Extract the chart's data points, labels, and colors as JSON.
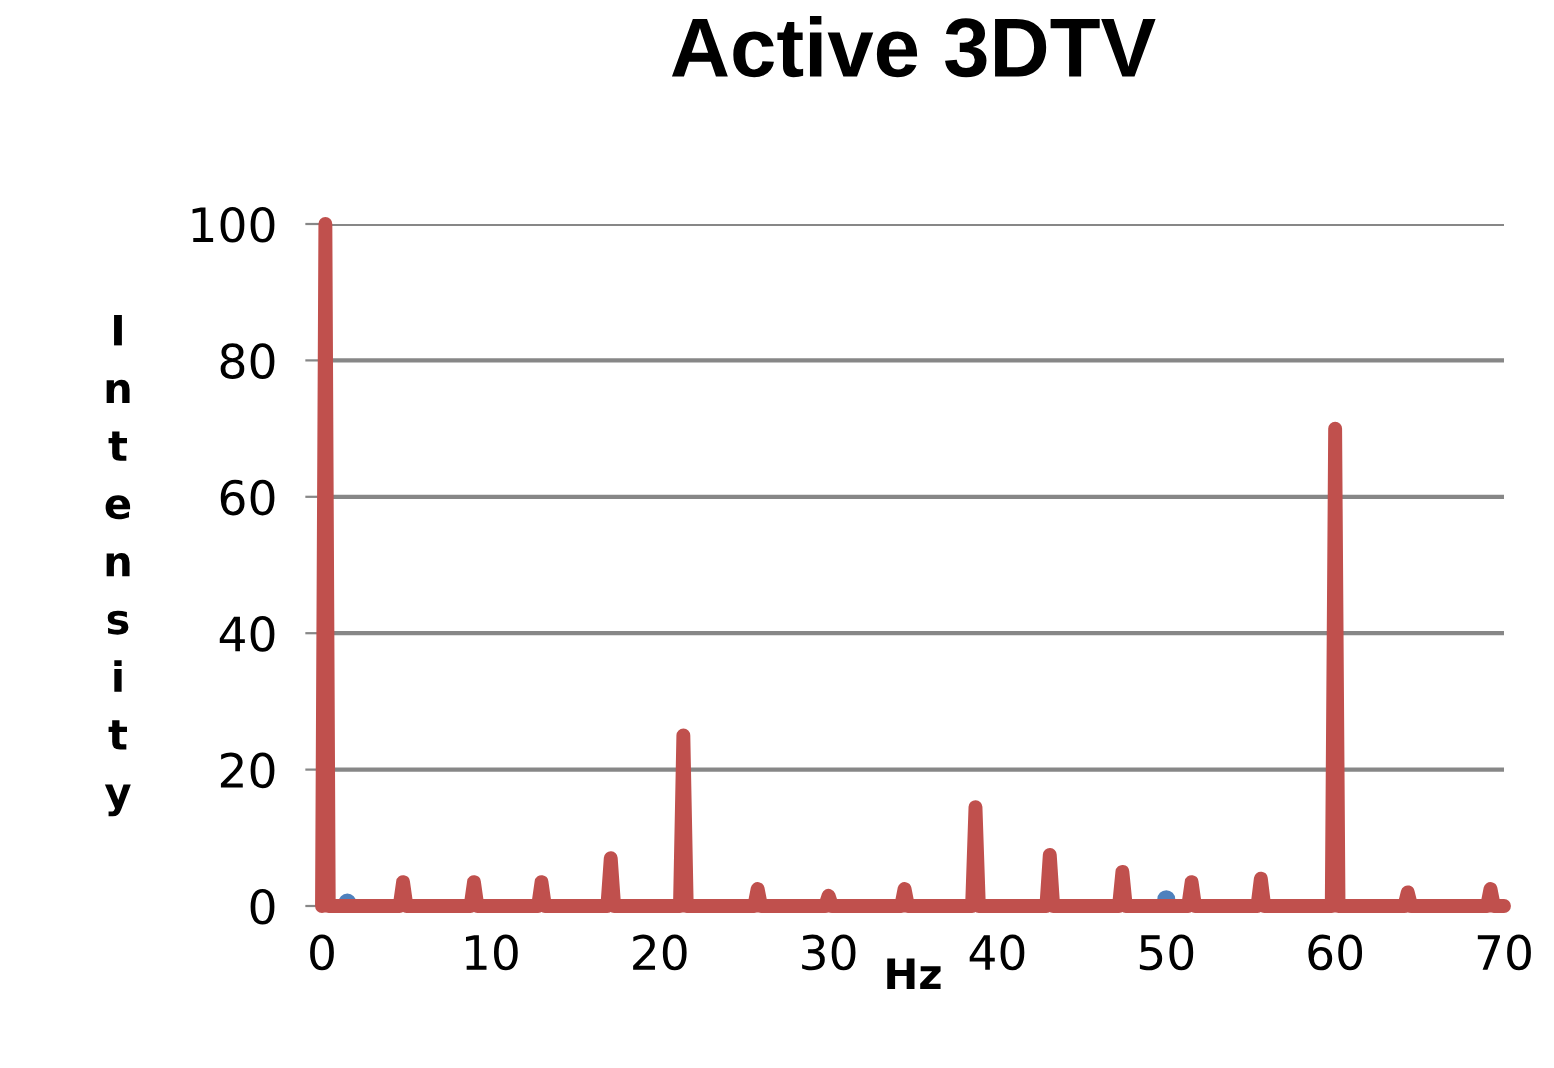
{
  "chart_data": {
    "type": "line",
    "title": "Active 3DTV",
    "xlabel": "Hz",
    "ylabel": "Intensity",
    "xlim": [
      0,
      70
    ],
    "xticks": [
      0,
      10,
      20,
      30,
      40,
      50,
      60,
      70
    ],
    "ylim": [
      0,
      100
    ],
    "yticks": [
      0,
      20,
      40,
      60,
      80,
      100
    ],
    "grid": "y",
    "marker": "none",
    "line_style": "solid",
    "series": [
      {
        "color": "#c0504d",
        "x": [
          0,
          0.2,
          0.4,
          1,
          4.6,
          4.8,
          5,
          8.8,
          9,
          9.2,
          12.8,
          13,
          13.2,
          16.9,
          17.1,
          17.3,
          21.2,
          21.4,
          21.6,
          25.6,
          25.8,
          26,
          29.8,
          30,
          30.2,
          34.3,
          34.5,
          34.7,
          38.5,
          38.7,
          38.9,
          42.9,
          43.1,
          43.3,
          47.2,
          47.4,
          47.6,
          51.3,
          51.5,
          51.7,
          55.4,
          55.6,
          55.8,
          59.8,
          60,
          60.2,
          64.1,
          64.3,
          64.5,
          69,
          69.2,
          69.4,
          70
        ],
        "values": [
          0,
          100,
          0,
          0,
          0,
          3.5,
          0,
          0,
          3.5,
          0,
          0,
          3.5,
          0,
          0,
          7,
          0,
          0,
          25,
          0,
          0,
          2.5,
          0,
          0,
          1.5,
          0,
          0,
          2.5,
          0,
          0,
          14.5,
          0,
          0,
          7.5,
          0,
          0,
          5,
          0,
          0,
          3.5,
          0,
          0,
          4,
          0,
          0,
          70,
          0,
          0,
          2,
          0,
          0,
          2.5,
          0,
          0
        ]
      },
      {
        "color": "#4f81bd",
        "type": "scatter",
        "marker": "circle",
        "x": [
          1.5,
          50
        ],
        "values": [
          0.5,
          1
        ]
      }
    ]
  }
}
